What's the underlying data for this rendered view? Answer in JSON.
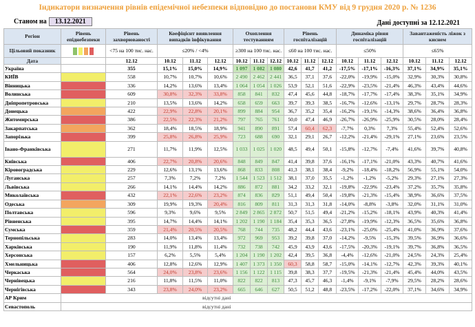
{
  "title": "Індикатори визначення рівнів епідемічної небезпеки відповідно до постанови КМУ від 9 грудня 2020 р. № 1236",
  "as_of_label": "Станом на",
  "as_of_date": "13.12.2021",
  "data_available": "Дані доступні за 12.12.2021",
  "colors": {
    "yellow": "#f2ee6a",
    "orange": "#f3a55e",
    "red": "#e05f5f",
    "alert_bg": "#f5cccc",
    "alert_text": "#c0392b",
    "test_bg": "#dcefd4",
    "test_text": "#3c8a3c",
    "header_bg": "#dbe5f1",
    "title": "#eea03a"
  },
  "headers": {
    "region": "Регіон",
    "level": "Рівень епіднебезпеки",
    "incidence": "Рівень захворюваності",
    "coef": "Коефіцієнт виявлення випадків інфікування",
    "testing": "Охоплення тестуванням",
    "hosp": "Рівень госпіталізацій",
    "dynamics": "Динаміка рівня госпіталізацій",
    "beds": "Завантаженість ліжок з киснем"
  },
  "targets": {
    "label": "Цільовий показник",
    "incidence": "<75 на 100 тис. нас.",
    "coef": "≤20% / <4%",
    "testing": "≥300 на 100 тис. нас.",
    "hosp": "≤60 на 100 тис. нас.",
    "dynamics": "≤50%",
    "beds": "≤65%"
  },
  "dates": {
    "label": "Дата",
    "incidence": "12.12",
    "days": [
      "10.12",
      "11.12",
      "12.12"
    ]
  },
  "rows": [
    {
      "region": "Україна",
      "level": "",
      "inc": "355",
      "coef": [
        "15,1%",
        "15,0%",
        "14,9%"
      ],
      "test": [
        "1 097",
        "1 082",
        "1 080"
      ],
      "hosp": [
        "42,6",
        "41,7",
        "41,2"
      ],
      "dyn": [
        "-17,5%",
        "-17,1%",
        "-16,3%"
      ],
      "beds": [
        "37,1%",
        "34,9%",
        "35,1%"
      ]
    },
    {
      "region": "КИЇВ",
      "level": "yellow",
      "inc": "558",
      "coef": [
        "10,7%",
        "10,7%",
        "10,6%"
      ],
      "test": [
        "2 490",
        "2 462",
        "2 441"
      ],
      "hosp": [
        "36,5",
        "37,1",
        "37,6"
      ],
      "dyn": [
        "-22,0%",
        "-19,9%",
        "-15,0%"
      ],
      "beds": [
        "32,9%",
        "30,3%",
        "30,8%"
      ]
    },
    {
      "region": "Вінницька",
      "level": "red",
      "inc": "336",
      "coef": [
        "14,2%",
        "13,6%",
        "13,4%"
      ],
      "test": [
        "1 064",
        "1 054",
        "1 026"
      ],
      "hosp": [
        "53,9",
        "52,1",
        "51,6"
      ],
      "dyn": [
        "-22,9%",
        "-23,5%",
        "-21,4%"
      ],
      "beds": [
        "46,3%",
        "43,4%",
        "44,6%"
      ]
    },
    {
      "region": "Волинська",
      "level": "red",
      "inc": "609",
      "coef": [
        "30,8%",
        "32,3%",
        "33,8%"
      ],
      "coef_alert": [
        true,
        true,
        true
      ],
      "test": [
        "858",
        "841",
        "832"
      ],
      "hosp": [
        "47,4",
        "45,6",
        "44,8"
      ],
      "dyn": [
        "-18,7%",
        "-17,7%",
        "-17,4%"
      ],
      "beds": [
        "38,3%",
        "35,1%",
        "34,9%"
      ]
    },
    {
      "region": "Дніпропетровська",
      "level": "yellow",
      "inc": "210",
      "coef": [
        "13,5%",
        "13,6%",
        "14,2%"
      ],
      "test": [
        "658",
        "659",
        "663"
      ],
      "hosp": [
        "39,7",
        "39,3",
        "38,5"
      ],
      "dyn": [
        "-16,7%",
        "-12,6%",
        "-13,1%"
      ],
      "beds": [
        "29,7%",
        "28,7%",
        "28,3%"
      ]
    },
    {
      "region": "Донецька",
      "level": "orange",
      "inc": "422",
      "coef": [
        "22,9%",
        "22,8%",
        "20,1%"
      ],
      "coef_alert": [
        true,
        true,
        true
      ],
      "test": [
        "899",
        "884",
        "954"
      ],
      "hosp": [
        "36,7",
        "35,2",
        "35,4"
      ],
      "dyn": [
        "-16,2%",
        "-19,1%",
        "-14,3%"
      ],
      "beds": [
        "38,6%",
        "36,4%",
        "36,8%"
      ]
    },
    {
      "region": "Житомирська",
      "level": "red",
      "inc": "386",
      "coef": [
        "22,5%",
        "22,3%",
        "21,2%"
      ],
      "coef_alert": [
        true,
        true,
        true
      ],
      "test": [
        "797",
        "765",
        "761"
      ],
      "hosp": [
        "50,0",
        "47,4",
        "46,9"
      ],
      "dyn": [
        "-26,7%",
        "-26,9%",
        "-25,9%"
      ],
      "beds": [
        "30,5%",
        "28,0%",
        "28,4%"
      ]
    },
    {
      "region": "Закарпатська",
      "level": "orange",
      "inc": "362",
      "coef": [
        "18,4%",
        "18,5%",
        "18,9%"
      ],
      "test": [
        "941",
        "890",
        "891"
      ],
      "hosp": [
        "57,4",
        "60,4",
        "62,3"
      ],
      "hosp_alert": [
        false,
        true,
        true
      ],
      "dyn": [
        "-7,7%",
        "0,3%",
        "7,3%"
      ],
      "beds": [
        "55,4%",
        "52,4%",
        "52,6%"
      ]
    },
    {
      "region": "Запорізька",
      "level": "red",
      "inc": "399",
      "coef": [
        "25,8%",
        "26,8%",
        "25,9%"
      ],
      "coef_alert": [
        true,
        true,
        true
      ],
      "test": [
        "723",
        "688",
        "690"
      ],
      "hosp": [
        "32,1",
        "29,1",
        "26,7"
      ],
      "dyn": [
        "-12,2%",
        "-21,4%",
        "-29,1%"
      ],
      "beds": [
        "27,1%",
        "23,6%",
        "23,5%"
      ]
    },
    {
      "region": "Івано-Франківська",
      "level": "yellow",
      "inc": "271",
      "coef": [
        "11,7%",
        "11,9%",
        "12,5%"
      ],
      "test": [
        "1 033",
        "1 025",
        "1 020"
      ],
      "hosp": [
        "48,5",
        "49,4",
        "50,1"
      ],
      "dyn": [
        "-15,8%",
        "-12,7%",
        "-7,4%"
      ],
      "beds": [
        "41,6%",
        "39,7%",
        "40,8%"
      ],
      "tall": true
    },
    {
      "region": "Київська",
      "level": "red",
      "inc": "406",
      "coef": [
        "22,7%",
        "20,8%",
        "20,6%"
      ],
      "coef_alert": [
        true,
        true,
        true
      ],
      "test": [
        "848",
        "849",
        "847"
      ],
      "hosp": [
        "41,4",
        "39,8",
        "37,6"
      ],
      "dyn": [
        "-16,1%",
        "-17,1%",
        "-21,0%"
      ],
      "beds": [
        "43,3%",
        "40,7%",
        "41,6%"
      ]
    },
    {
      "region": "Кіровоградська",
      "level": "yellow",
      "inc": "229",
      "coef": [
        "12,6%",
        "13,1%",
        "13,6%"
      ],
      "test": [
        "868",
        "833",
        "808"
      ],
      "hosp": [
        "41,3",
        "38,1",
        "38,4"
      ],
      "dyn": [
        "-9,2%",
        "-18,4%",
        "-18,2%"
      ],
      "beds": [
        "56,9%",
        "55,1%",
        "54,0%"
      ]
    },
    {
      "region": "Луганська",
      "level": "yellow",
      "inc": "257",
      "coef": [
        "7,3%",
        "7,2%",
        "7,2%"
      ],
      "test": [
        "1 544",
        "1 523",
        "1 512"
      ],
      "hosp": [
        "38,1",
        "37,0",
        "35,5"
      ],
      "dyn": [
        "-1,2%",
        "-1,2%",
        "-5,2%"
      ],
      "beds": [
        "29,3%",
        "27,1%",
        "27,3%"
      ]
    },
    {
      "region": "Львівська",
      "level": "yellow",
      "inc": "266",
      "coef": [
        "14,1%",
        "14,4%",
        "14,2%"
      ],
      "test": [
        "886",
        "872",
        "881"
      ],
      "hosp": [
        "34,2",
        "33,2",
        "32,1"
      ],
      "dyn": [
        "-19,8%",
        "-22,9%",
        "-23,4%"
      ],
      "beds": [
        "37,2%",
        "35,7%",
        "35,8%"
      ]
    },
    {
      "region": "Миколаївська",
      "level": "red",
      "inc": "432",
      "coef": [
        "22,1%",
        "22,6%",
        "23,2%"
      ],
      "coef_alert": [
        true,
        true,
        true
      ],
      "test": [
        "874",
        "836",
        "829"
      ],
      "hosp": [
        "51,1",
        "49,4",
        "50,4"
      ],
      "dyn": [
        "-19,8%",
        "-21,3%",
        "-15,4%"
      ],
      "beds": [
        "38,9%",
        "36,6%",
        "37,5%"
      ]
    },
    {
      "region": "Одеська",
      "level": "orange",
      "inc": "309",
      "coef": [
        "19,9%",
        "19,3%",
        "20,4%"
      ],
      "coef_alert": [
        false,
        false,
        true
      ],
      "test": [
        "816",
        "809",
        "811"
      ],
      "hosp": [
        "31,3",
        "31,3",
        "31,8"
      ],
      "dyn": [
        "-14,0%",
        "-8,8%",
        "-3,8%"
      ],
      "beds": [
        "32,0%",
        "31,1%",
        "31,0%"
      ]
    },
    {
      "region": "Полтавська",
      "level": "yellow",
      "inc": "596",
      "coef": [
        "9,3%",
        "9,6%",
        "9,5%"
      ],
      "test": [
        "2 849",
        "2 865",
        "2 872"
      ],
      "hosp": [
        "50,7",
        "51,5",
        "49,4"
      ],
      "dyn": [
        "-21,2%",
        "-15,2%",
        "-18,1%"
      ],
      "beds": [
        "43,9%",
        "40,3%",
        "41,4%"
      ]
    },
    {
      "region": "Рівненська",
      "level": "yellow",
      "inc": "395",
      "coef": [
        "14,7%",
        "14,4%",
        "14,1%"
      ],
      "test": [
        "1 202",
        "1 190",
        "1 184"
      ],
      "hosp": [
        "35,4",
        "35,3",
        "36,5"
      ],
      "dyn": [
        "-27,8%",
        "-19,9%",
        "-12,3%"
      ],
      "beds": [
        "36,5%",
        "35,6%",
        "36,8%"
      ]
    },
    {
      "region": "Сумська",
      "level": "red",
      "inc": "359",
      "coef": [
        "21,4%",
        "20,5%",
        "20,5%"
      ],
      "coef_alert": [
        true,
        true,
        true
      ],
      "test": [
        "768",
        "744",
        "735"
      ],
      "hosp": [
        "48,2",
        "44,4",
        "43,6"
      ],
      "dyn": [
        "-23,1%",
        "-25,0%",
        "-25,4%"
      ],
      "beds": [
        "41,0%",
        "36,9%",
        "37,6%"
      ]
    },
    {
      "region": "Тернопільська",
      "level": "yellow",
      "inc": "283",
      "coef": [
        "14,0%",
        "13,4%",
        "13,4%"
      ],
      "test": [
        "972",
        "969",
        "953"
      ],
      "hosp": [
        "39,2",
        "39,8",
        "37,0"
      ],
      "dyn": [
        "-14,2%",
        "-9,5%",
        "-15,3%"
      ],
      "beds": [
        "39,5%",
        "36,9%",
        "36,6%"
      ]
    },
    {
      "region": "Харківська",
      "level": "yellow",
      "inc": "190",
      "coef": [
        "11,9%",
        "11,8%",
        "11,4%"
      ],
      "test": [
        "732",
        "738",
        "742"
      ],
      "hosp": [
        "45,9",
        "43,9",
        "43,6"
      ],
      "dyn": [
        "-17,5%",
        "-20,3%",
        "-19,1%"
      ],
      "beds": [
        "39,7%",
        "36,8%",
        "36,5%"
      ]
    },
    {
      "region": "Херсонська",
      "level": "yellow",
      "inc": "157",
      "coef": [
        "6,2%",
        "5,5%",
        "5,4%"
      ],
      "test": [
        "1 204",
        "1 190",
        "1 202"
      ],
      "hosp": [
        "42,4",
        "39,5",
        "36,8"
      ],
      "dyn": [
        "-4,4%",
        "-12,6%",
        "-21,0%"
      ],
      "beds": [
        "24,5%",
        "24,3%",
        "25,4%"
      ]
    },
    {
      "region": "Хмельницька",
      "level": "red",
      "inc": "406",
      "coef": [
        "12,8%",
        "12,6%",
        "12,9%"
      ],
      "test": [
        "1 407",
        "1 373",
        "1 350"
      ],
      "hosp": [
        "60,3",
        "58,8",
        "58,7"
      ],
      "hosp_alert": [
        true,
        false,
        false
      ],
      "dyn": [
        "-15,0%",
        "-14,1%",
        "-12,7%"
      ],
      "beds": [
        "42,3%",
        "39,3%",
        "40,1%"
      ]
    },
    {
      "region": "Черкаська",
      "level": "red",
      "inc": "564",
      "coef": [
        "24,0%",
        "23,8%",
        "23,6%"
      ],
      "coef_alert": [
        true,
        true,
        true
      ],
      "test": [
        "1 156",
        "1 122",
        "1 115"
      ],
      "hosp": [
        "39,8",
        "38,3",
        "37,7"
      ],
      "dyn": [
        "-19,5%",
        "-21,3%",
        "-21,4%"
      ],
      "beds": [
        "45,4%",
        "44,0%",
        "43,5%"
      ]
    },
    {
      "region": "Чернівецька",
      "level": "yellow",
      "inc": "216",
      "coef": [
        "11,8%",
        "11,5%",
        "11,0%"
      ],
      "test": [
        "822",
        "822",
        "813"
      ],
      "hosp": [
        "47,3",
        "45,7",
        "46,3"
      ],
      "dyn": [
        "-1,4%",
        "-9,1%",
        "-7,9%"
      ],
      "beds": [
        "29,5%",
        "28,2%",
        "28,6%"
      ]
    },
    {
      "region": "Чернігівська",
      "level": "red",
      "inc": "343",
      "coef": [
        "23,8%",
        "24,0%",
        "23,2%"
      ],
      "coef_alert": [
        true,
        true,
        true
      ],
      "test": [
        "665",
        "646",
        "627"
      ],
      "hosp": [
        "50,5",
        "51,2",
        "48,8"
      ],
      "dyn": [
        "-23,5%",
        "-17,2%",
        "-22,0%"
      ],
      "beds": [
        "37,1%",
        "34,6%",
        "34,9%"
      ]
    }
  ],
  "nodata_rows": [
    {
      "region": "АР Крим",
      "text": "відсутні дані"
    },
    {
      "region": "Севастополь",
      "text": "відсутні дані"
    }
  ]
}
